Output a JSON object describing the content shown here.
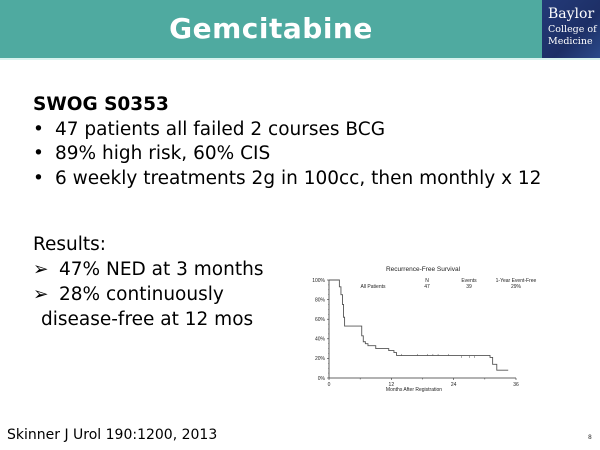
{
  "header": {
    "title": "Gemcitabine",
    "bg_color": "#4faaa0",
    "logo": {
      "line1": "Baylor",
      "line2": "College of",
      "line3": "Medicine",
      "bg_color": "#233a78"
    }
  },
  "study": {
    "heading": "SWOG S0353",
    "bullets": [
      "47 patients all failed 2 courses BCG",
      "89% high risk,  60% CIS",
      "6 weekly treatments 2g in 100cc, then monthly x 12"
    ],
    "bullet_glyph": "•"
  },
  "results": {
    "heading": "Results:",
    "arrow_glyph": "➢",
    "items": [
      {
        "line1": "47% NED at 3 months"
      },
      {
        "line1": "28% continuously",
        "line2": "disease-free at 12 mos"
      }
    ]
  },
  "chart_data": {
    "type": "line",
    "title": "Recurrence-Free Survival",
    "xlabel": "Months After Registration",
    "ylabel": "",
    "xlim": [
      0,
      36
    ],
    "ylim": [
      0,
      100
    ],
    "x_ticks": [
      "0",
      "12",
      "24",
      "36"
    ],
    "y_ticks": [
      "0%",
      "20%",
      "40%",
      "60%",
      "80%",
      "100%"
    ],
    "grid": false,
    "legend_table": {
      "headers": [
        "",
        "N",
        "Events",
        "1-Year Event-Free"
      ],
      "rows": [
        [
          "All Patients",
          "47",
          "39",
          "29%"
        ]
      ]
    },
    "series": [
      {
        "name": "All Patients",
        "step": true,
        "x": [
          0,
          1.5,
          2.0,
          2.3,
          2.6,
          2.8,
          3.0,
          6.0,
          6.3,
          6.6,
          7.0,
          7.5,
          9.0,
          11.5,
          12.5,
          13.0,
          25.0,
          31.0,
          31.5,
          32.3,
          34.5
        ],
        "values": [
          100,
          100,
          93,
          85,
          75,
          62,
          53,
          53,
          43,
          37,
          35,
          33,
          30,
          28,
          26,
          23,
          23,
          21,
          14,
          8,
          8
        ]
      }
    ]
  },
  "citation": "Skinner J Urol 190:1200, 2013",
  "page_number": "8"
}
